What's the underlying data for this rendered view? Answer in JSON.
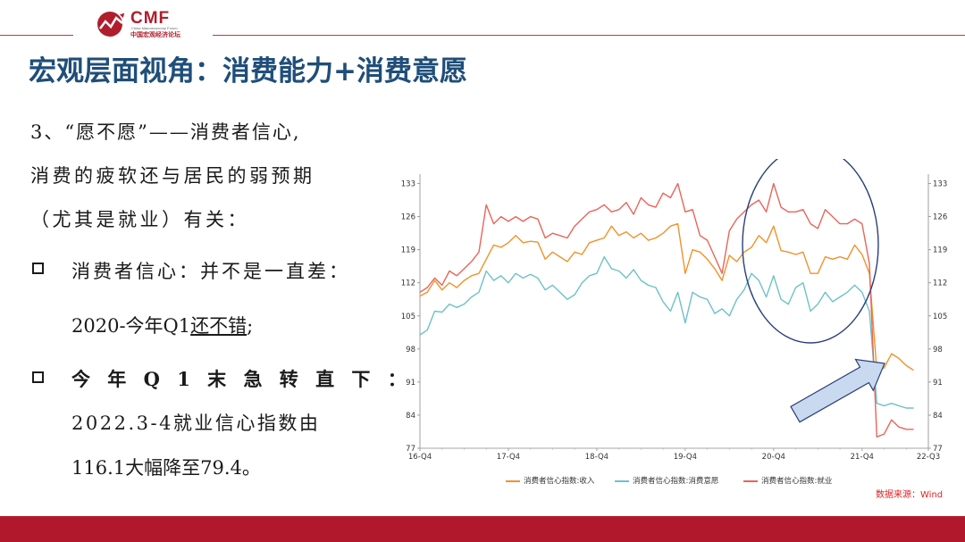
{
  "logo": {
    "brand": "CMF",
    "subtitle_en": "China Macroeconomy Forum",
    "subtitle_cn": "中国宏观经济论坛"
  },
  "colors": {
    "brand_red": "#b01e2d",
    "title_blue": "#1f4e79",
    "footer_red": "#b2182b",
    "series_income": "#f0922b",
    "series_intent": "#6ec1c8",
    "series_employment": "#e8655a",
    "circle": "#2b3f7a",
    "arrow_fill": "#c9d9ef",
    "arrow_stroke": "#2b3f7a"
  },
  "title": "宏观层面视角：消费能力+消费意愿",
  "body": {
    "line1": "3、“愿不愿”——消费者信心,",
    "line2": "消费的疲软还与居民的弱预期",
    "line3": "（尤其是就业）有关：",
    "bullet1": "消费者信心：并不是一直差：",
    "bullet1_sub_prefix": "2020-今年Q1",
    "bullet1_sub_underlined": "还不错",
    "bullet1_sub_suffix": ";",
    "bullet2": "今 年 Q 1 末 急 转 直 下 ：",
    "bullet2_line2": "2022.3-4就业信心指数由",
    "bullet2_line3": "116.1大幅降至79.4。"
  },
  "source": "数据来源：Wind",
  "chart_data": {
    "type": "line",
    "x_tick_labels": [
      "16-Q4",
      "17-Q4",
      "18-Q4",
      "19-Q4",
      "20-Q4",
      "21-Q4",
      "22-Q3"
    ],
    "x_tick_months": [
      0,
      12,
      24,
      36,
      48,
      60,
      69
    ],
    "x_start": "2016-10",
    "y_tick_labels": [
      "77",
      "84",
      "91",
      "98",
      "105",
      "112",
      "119",
      "126",
      "133"
    ],
    "ylim": [
      77,
      135
    ],
    "dual_axis_identical": true,
    "legend_position": "bottom",
    "series": [
      {
        "name": "消费者信心指数:收入",
        "color": "#f0922b",
        "values": [
          109.2,
          110.0,
          112.5,
          110.5,
          112.0,
          111.0,
          112.5,
          113.5,
          114.0,
          117.0,
          120.0,
          119.5,
          120.5,
          122.0,
          120.5,
          120.8,
          120.6,
          117.0,
          118.5,
          117.5,
          116.5,
          118.5,
          118.0,
          120.5,
          121.0,
          121.5,
          124.0,
          122.0,
          122.8,
          121.5,
          122.5,
          121.0,
          121.5,
          122.5,
          124.0,
          124.5,
          114.0,
          119.0,
          118.5,
          117.0,
          115.0,
          112.5,
          117.8,
          116.5,
          118.5,
          119.5,
          122.0,
          120.5,
          124.0,
          118.8,
          118.5,
          118.0,
          118.5,
          114.0,
          114.0,
          117.5,
          117.0,
          117.5,
          117.0,
          120.0,
          118.0,
          114.0,
          93.5,
          94.0,
          97.0,
          96.0,
          94.5,
          93.5
        ]
      },
      {
        "name": "消费者信心指数:消费意愿",
        "color": "#6ec1c8",
        "values": [
          101.0,
          102.0,
          106.0,
          105.8,
          107.5,
          106.8,
          107.5,
          109.0,
          110.0,
          114.5,
          112.5,
          113.5,
          112.0,
          114.0,
          113.0,
          113.8,
          113.0,
          110.5,
          111.5,
          110.0,
          108.5,
          109.5,
          112.0,
          113.5,
          114.0,
          117.5,
          115.0,
          114.5,
          113.0,
          114.8,
          112.5,
          111.5,
          111.0,
          108.0,
          106.0,
          110.0,
          103.5,
          110.0,
          109.0,
          108.5,
          105.5,
          106.5,
          105.0,
          108.5,
          110.5,
          114.0,
          112.5,
          109.0,
          113.5,
          108.5,
          107.5,
          111.0,
          112.0,
          106.0,
          107.5,
          110.0,
          108.0,
          109.0,
          110.0,
          111.5,
          110.0,
          106.0,
          86.5,
          86.0,
          86.5,
          86.0,
          85.5,
          85.5
        ]
      },
      {
        "name": "消费者信心指数:就业",
        "color": "#e8655a",
        "values": [
          110.0,
          111.0,
          113.0,
          111.5,
          114.5,
          113.5,
          115.0,
          116.5,
          118.5,
          128.5,
          124.5,
          126.0,
          125.0,
          126.0,
          125.0,
          126.0,
          125.5,
          121.5,
          122.5,
          122.0,
          121.5,
          124.0,
          125.5,
          127.0,
          127.5,
          128.5,
          127.0,
          127.5,
          129.0,
          126.5,
          130.0,
          128.5,
          128.0,
          131.0,
          130.0,
          133.0,
          127.0,
          127.5,
          122.0,
          121.0,
          117.5,
          114.0,
          123.0,
          125.5,
          127.0,
          128.5,
          129.5,
          127.0,
          133.0,
          128.0,
          127.0,
          127.0,
          127.5,
          124.5,
          123.5,
          127.5,
          126.0,
          124.5,
          124.5,
          125.5,
          124.5,
          116.1,
          79.4,
          80.0,
          83.0,
          81.5,
          81.0,
          81.0
        ]
      }
    ]
  },
  "annotations": {
    "circle": "highlight-2020Q4-2021Q4",
    "arrow": "pointing-to-2022Q1-drop"
  }
}
